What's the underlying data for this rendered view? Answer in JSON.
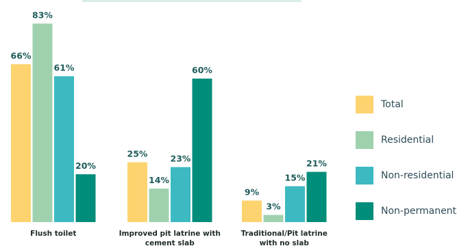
{
  "chart_data": {
    "type": "bar",
    "title": "",
    "xlabel": "",
    "ylabel": "",
    "ylim": [
      0,
      100
    ],
    "grid": false,
    "legend_position": "right",
    "categories": [
      "Flush toilet",
      "Improved pit latrine with cement slab",
      "Traditional/Pit latrine with no slab"
    ],
    "category_lines": [
      [
        "Flush toilet"
      ],
      [
        "Improved pit latrine with",
        "cement slab"
      ],
      [
        "Traditional/Pit latrine",
        "with no slab"
      ]
    ],
    "series": [
      {
        "name": "Total",
        "color": "#fdd36f",
        "values": [
          66,
          25,
          9
        ]
      },
      {
        "name": "Residential",
        "color": "#9fd1ae",
        "values": [
          83,
          14,
          3
        ]
      },
      {
        "name": "Non-residential",
        "color": "#3cb9c1",
        "values": [
          61,
          23,
          15
        ]
      },
      {
        "name": "Non-permanent",
        "color": "#008e7b",
        "values": [
          20,
          60,
          21
        ]
      }
    ],
    "value_suffix": "%"
  }
}
